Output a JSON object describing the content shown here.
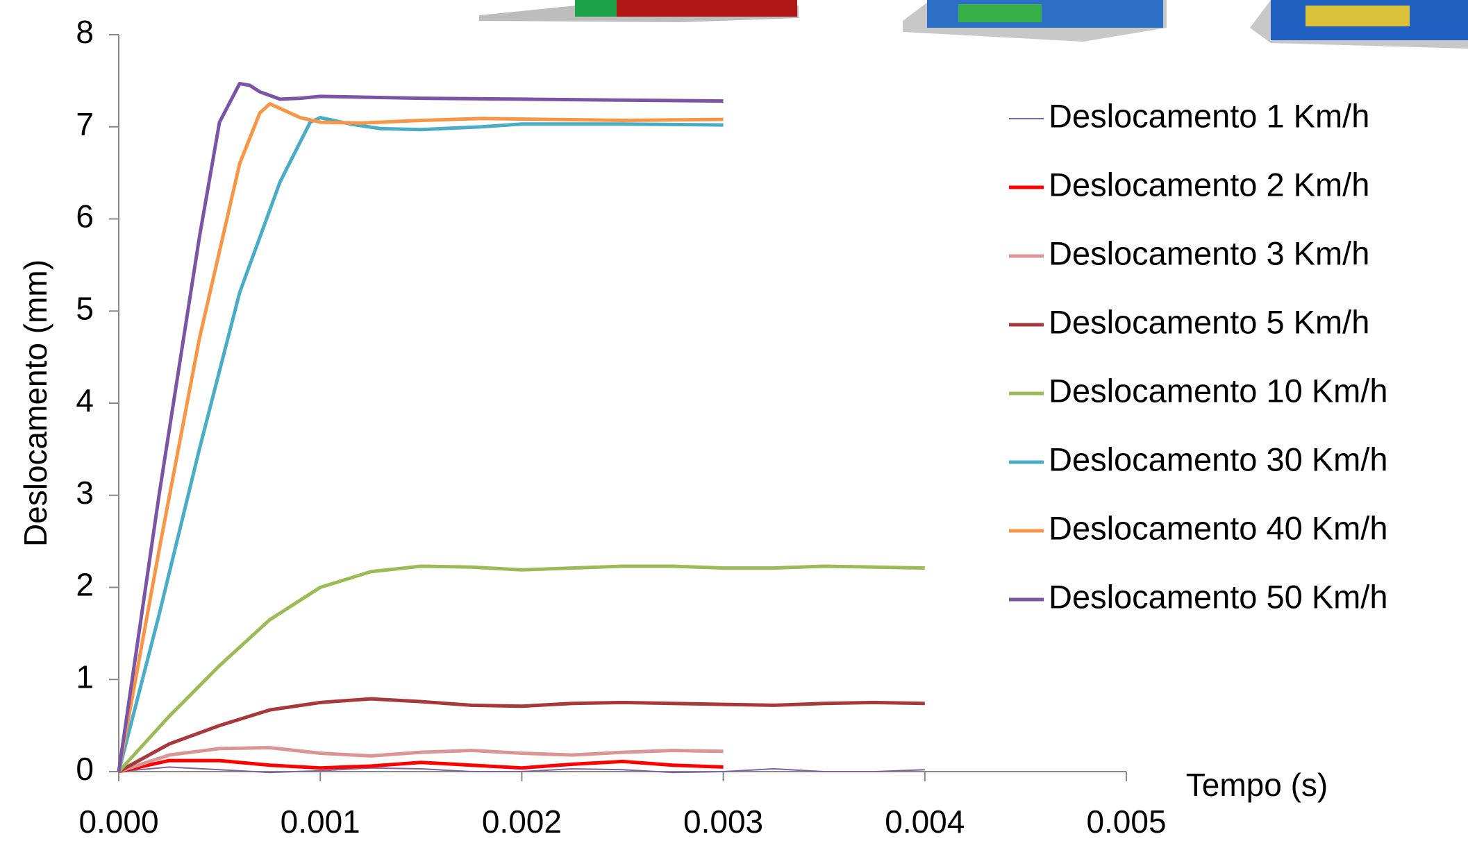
{
  "chart_data": {
    "type": "line",
    "xlabel": "Tempo (s)",
    "ylabel": "Deslocamento (mm)",
    "xlim": [
      0,
      0.005
    ],
    "ylim": [
      0,
      8
    ],
    "xticks": [
      {
        "value": 0,
        "label": "0.000"
      },
      {
        "value": 0.001,
        "label": "0.001"
      },
      {
        "value": 0.002,
        "label": "0.002"
      },
      {
        "value": 0.003,
        "label": "0.003"
      },
      {
        "value": 0.004,
        "label": "0.004"
      },
      {
        "value": 0.005,
        "label": "0.005"
      }
    ],
    "yticks": [
      0,
      1,
      2,
      3,
      4,
      5,
      6,
      7,
      8
    ],
    "grid": false,
    "legend": "right",
    "series": [
      {
        "name": "Deslocamento 1 Km/h",
        "color": "#8064a2",
        "width": 2,
        "x": [
          0,
          0.00025,
          0.0005,
          0.00075,
          0.001,
          0.00125,
          0.0015,
          0.00175,
          0.002,
          0.00225,
          0.0025,
          0.00275,
          0.003,
          0.00325,
          0.0035,
          0.00375,
          0.004
        ],
        "values": [
          0,
          0.05,
          0.02,
          -0.01,
          0.01,
          0.04,
          0.03,
          0,
          0,
          0.03,
          0.02,
          -0.01,
          0,
          0.03,
          0,
          0,
          0.02
        ]
      },
      {
        "name": "Deslocamento 2 Km/h",
        "color": "#ff0000",
        "width": 5,
        "x": [
          0,
          0.00025,
          0.0005,
          0.00075,
          0.001,
          0.00125,
          0.0015,
          0.00175,
          0.002,
          0.00225,
          0.0025,
          0.00275,
          0.003
        ],
        "values": [
          0,
          0.12,
          0.12,
          0.07,
          0.04,
          0.06,
          0.1,
          0.07,
          0.04,
          0.08,
          0.11,
          0.07,
          0.05
        ]
      },
      {
        "name": "Deslocamento 3 Km/h",
        "color": "#d99694",
        "width": 5,
        "x": [
          0,
          0.00025,
          0.0005,
          0.00075,
          0.001,
          0.00125,
          0.0015,
          0.00175,
          0.002,
          0.00225,
          0.0025,
          0.00275,
          0.003
        ],
        "values": [
          0,
          0.18,
          0.25,
          0.26,
          0.2,
          0.17,
          0.21,
          0.23,
          0.2,
          0.18,
          0.21,
          0.23,
          0.22
        ]
      },
      {
        "name": "Deslocamento 5 Km/h",
        "color": "#a5393b",
        "width": 5,
        "x": [
          0,
          0.00025,
          0.0005,
          0.00075,
          0.001,
          0.00125,
          0.0015,
          0.00175,
          0.002,
          0.00225,
          0.0025,
          0.00275,
          0.003,
          0.00325,
          0.0035,
          0.00375,
          0.004
        ],
        "values": [
          0,
          0.3,
          0.5,
          0.67,
          0.75,
          0.79,
          0.76,
          0.72,
          0.71,
          0.74,
          0.75,
          0.74,
          0.73,
          0.72,
          0.74,
          0.75,
          0.74
        ]
      },
      {
        "name": "Deslocamento 10 Km/h",
        "color": "#9bbb59",
        "width": 5,
        "x": [
          0,
          0.00025,
          0.0005,
          0.00075,
          0.001,
          0.00125,
          0.0015,
          0.00175,
          0.002,
          0.00225,
          0.0025,
          0.00275,
          0.003,
          0.00325,
          0.0035,
          0.00375,
          0.004
        ],
        "values": [
          0,
          0.6,
          1.15,
          1.65,
          2.0,
          2.17,
          2.23,
          2.22,
          2.19,
          2.21,
          2.23,
          2.23,
          2.21,
          2.21,
          2.23,
          2.22,
          2.21
        ]
      },
      {
        "name": "Deslocamento 30 Km/h",
        "color": "#4bacc6",
        "width": 5,
        "x": [
          0,
          0.0002,
          0.0004,
          0.0006,
          0.0008,
          0.00095,
          0.001,
          0.00115,
          0.0013,
          0.0015,
          0.0018,
          0.002,
          0.0025,
          0.003
        ],
        "values": [
          0,
          1.7,
          3.5,
          5.2,
          6.4,
          7.05,
          7.1,
          7.03,
          6.98,
          6.97,
          7.0,
          7.03,
          7.03,
          7.02
        ]
      },
      {
        "name": "Deslocamento 40 Km/h",
        "color": "#f79646",
        "width": 5,
        "x": [
          0,
          0.0002,
          0.0004,
          0.0006,
          0.0007,
          0.00075,
          0.0008,
          0.0009,
          0.001,
          0.0012,
          0.0015,
          0.0018,
          0.0025,
          0.003
        ],
        "values": [
          0,
          2.4,
          4.7,
          6.6,
          7.15,
          7.25,
          7.2,
          7.1,
          7.05,
          7.04,
          7.07,
          7.09,
          7.07,
          7.08
        ]
      },
      {
        "name": "Deslocamento 50 Km/h",
        "color": "#7a55a6",
        "width": 5,
        "x": [
          0,
          0.0002,
          0.0004,
          0.0005,
          0.0006,
          0.00065,
          0.0007,
          0.0008,
          0.0009,
          0.001,
          0.0015,
          0.002,
          0.0025,
          0.003
        ],
        "values": [
          0,
          3.0,
          5.8,
          7.05,
          7.47,
          7.45,
          7.38,
          7.3,
          7.31,
          7.33,
          7.31,
          7.3,
          7.29,
          7.28
        ]
      }
    ]
  }
}
